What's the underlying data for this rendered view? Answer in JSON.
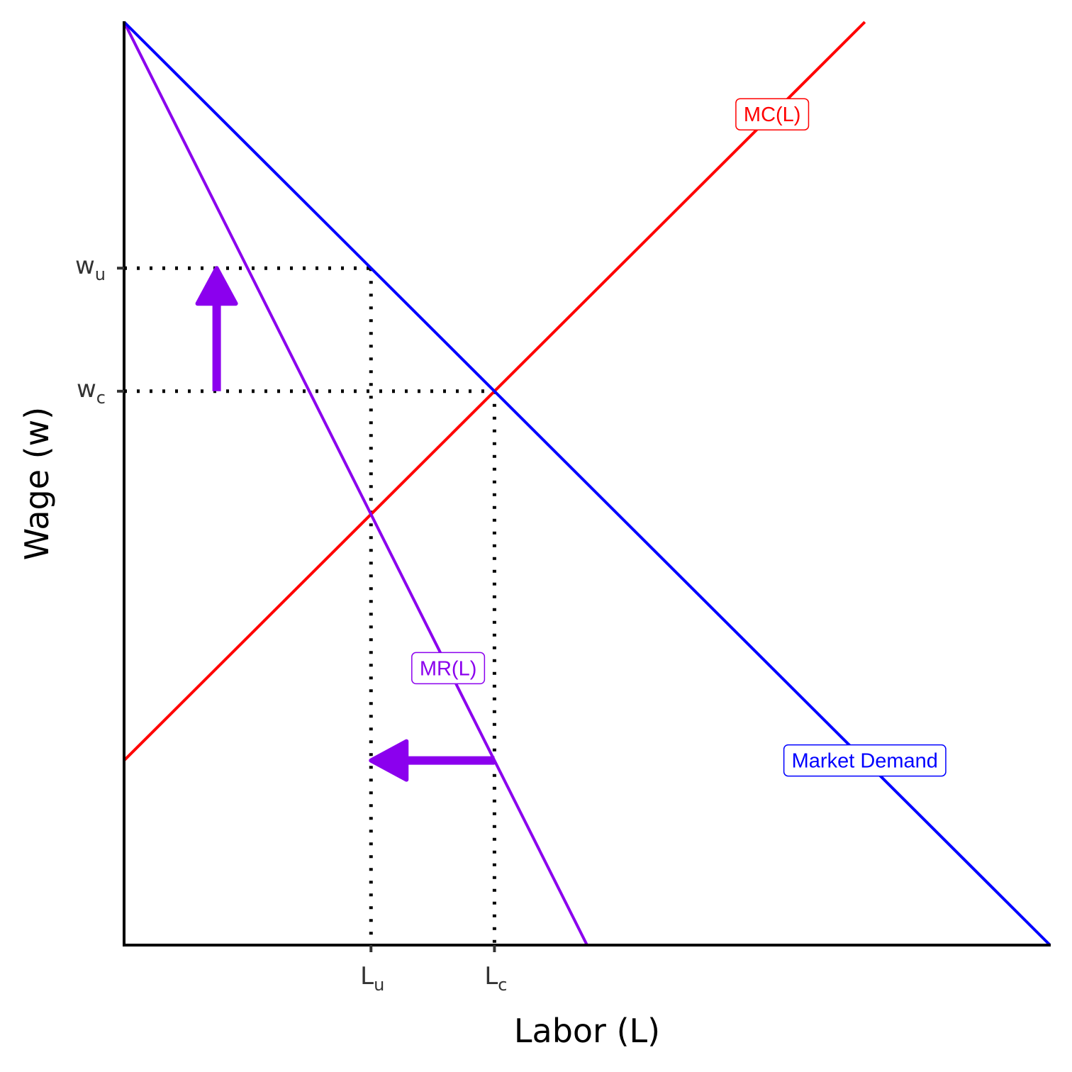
{
  "chart_data": {
    "type": "line",
    "xlabel": "Labor (L)",
    "ylabel": "Wage (w)",
    "xlim": [
      0,
      15
    ],
    "ylim": [
      0,
      15
    ],
    "grid": false,
    "legend": "none",
    "series": [
      {
        "name": "MC(L)",
        "color": "#ff0000",
        "points": [
          [
            0,
            3
          ],
          [
            12,
            15
          ]
        ]
      },
      {
        "name": "MR(L)",
        "color": "#8b00ee",
        "points": [
          [
            0,
            15
          ],
          [
            7.5,
            0
          ]
        ]
      },
      {
        "name": "Market Demand",
        "color": "#0000ff",
        "points": [
          [
            0,
            15
          ],
          [
            15,
            0
          ]
        ]
      }
    ],
    "curve_labels": [
      {
        "series": "MC(L)",
        "text": "MC(L)",
        "x": 10.5,
        "y": 13.5
      },
      {
        "series": "MR(L)",
        "text": "MR(L)",
        "x": 5.25,
        "y": 4.5
      },
      {
        "series": "Market Demand",
        "text": "Market Demand",
        "x": 12.0,
        "y": 3.0
      }
    ],
    "x_ticks": [
      {
        "main": "L",
        "sub": "u",
        "value": 4
      },
      {
        "main": "L",
        "sub": "c",
        "value": 6
      }
    ],
    "y_ticks": [
      {
        "main": "w",
        "sub": "u",
        "value": 11
      },
      {
        "main": "w",
        "sub": "c",
        "value": 9
      }
    ],
    "guides": [
      {
        "from": [
          0,
          11
        ],
        "to": [
          4,
          11
        ]
      },
      {
        "from": [
          4,
          11
        ],
        "to": [
          4,
          0
        ]
      },
      {
        "from": [
          0,
          9
        ],
        "to": [
          6,
          9
        ]
      },
      {
        "from": [
          6,
          9
        ],
        "to": [
          6,
          0
        ]
      }
    ],
    "arrows": [
      {
        "name": "wage-increase",
        "from": [
          1.5,
          9
        ],
        "to": [
          1.5,
          11
        ],
        "color": "#8b00ee"
      },
      {
        "name": "labor-decrease",
        "from": [
          6,
          3
        ],
        "to": [
          4,
          3
        ],
        "color": "#8b00ee"
      }
    ]
  }
}
